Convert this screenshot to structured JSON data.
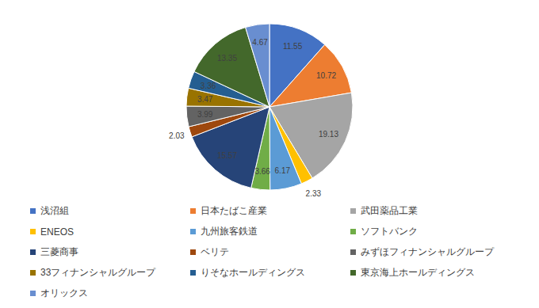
{
  "chart_data": {
    "type": "pie",
    "categories": [
      "浅沼組",
      "日本たばこ産業",
      "武田薬品工業",
      "ENEOS",
      "九州旅客鉄道",
      "ソフトバンク",
      "三菱商事",
      "ベリテ",
      "みずほフィナンシャルグループ",
      "33フィナンシャルグループ",
      "りそなホールディングス",
      "東京海上ホールディングス",
      "オリックス"
    ],
    "values": [
      11.55,
      10.72,
      19.13,
      2.33,
      6.17,
      3.66,
      15.57,
      2.03,
      3.99,
      3.47,
      3.36,
      13.35,
      4.67
    ],
    "colors": [
      "#4472c4",
      "#ed7d31",
      "#a5a5a5",
      "#ffc000",
      "#5b9bd5",
      "#70ad47",
      "#264478",
      "#9e480e",
      "#636363",
      "#997300",
      "#255e91",
      "#43682b",
      "#698ed0"
    ],
    "data_labels": true,
    "legend": "bottom"
  }
}
